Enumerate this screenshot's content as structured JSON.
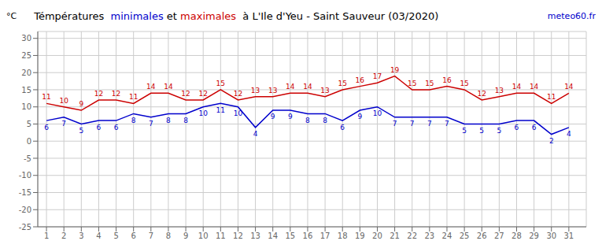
{
  "chart_data": {
    "type": "line",
    "title": "Témpératures  minimales et maximales  à L'Ile d'Yeu - Saint Sauveur (03/2020)",
    "y_label": "°C",
    "annotations": [
      {
        "text": "meteo60.fr",
        "color": "#0000cc"
      }
    ],
    "x": [
      1,
      2,
      3,
      4,
      5,
      6,
      7,
      8,
      9,
      10,
      11,
      12,
      13,
      14,
      15,
      16,
      17,
      18,
      19,
      20,
      21,
      22,
      23,
      24,
      25,
      26,
      27,
      28,
      29,
      30,
      31
    ],
    "series": [
      {
        "name": "maximales",
        "color": "#cc0000",
        "values": [
          11,
          10,
          9,
          12,
          12,
          11,
          14,
          14,
          12,
          12,
          15,
          12,
          13,
          13,
          14,
          14,
          13,
          15,
          16,
          17,
          19,
          15,
          15,
          16,
          15,
          12,
          13,
          14,
          14,
          11,
          14
        ]
      },
      {
        "name": "minimales",
        "color": "#0000cc",
        "values": [
          6,
          7,
          5,
          6,
          6,
          8,
          7,
          8,
          8,
          10,
          11,
          10,
          4,
          9,
          9,
          8,
          8,
          6,
          9,
          10,
          7,
          7,
          7,
          7,
          5,
          5,
          5,
          6,
          6,
          2,
          4
        ]
      }
    ],
    "xlim": [
      0.5,
      32
    ],
    "xticks": [
      1,
      2,
      3,
      4,
      5,
      6,
      7,
      8,
      9,
      10,
      11,
      12,
      13,
      14,
      15,
      16,
      17,
      18,
      19,
      20,
      21,
      22,
      23,
      24,
      25,
      26,
      27,
      28,
      29,
      30,
      31
    ],
    "ylim": [
      -25,
      32
    ],
    "yticks": [
      -25,
      -20,
      -15,
      -10,
      -5,
      0,
      5,
      10,
      15,
      20,
      25,
      30
    ],
    "grid": true,
    "data_labels": true
  }
}
